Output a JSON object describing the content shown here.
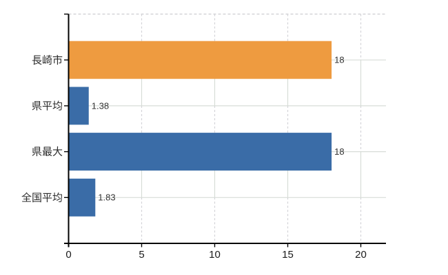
{
  "chart_data": {
    "type": "bar",
    "orientation": "horizontal",
    "title": "",
    "categories": [
      "長崎市",
      "県平均",
      "県最大",
      "全国平均"
    ],
    "values": [
      18,
      1.38,
      18,
      1.83
    ],
    "value_labels": [
      "18",
      "1.38",
      "18",
      "1.83"
    ],
    "bar_colors": [
      "#EE9B40",
      "#3A6CA7",
      "#3A6CA7",
      "#3A6CA7"
    ],
    "x_ticks": [
      0,
      5,
      10,
      15,
      20
    ],
    "x_tick_labels": [
      "0",
      "5",
      "10",
      "15",
      "20"
    ],
    "xlim": [
      0,
      21.7
    ],
    "grid": true,
    "legend": false,
    "colors": {
      "highlight_bar": "#EE9B40",
      "default_bar": "#3A6CA7",
      "grid_solid": "#D7DCD7",
      "grid_dashed": "#D3D3D7",
      "axis": "#000000",
      "tick_label": "#1A1A1A",
      "category_label": "#2B2B2B",
      "value_label": "#333333",
      "background": "#FFFFFF"
    }
  }
}
